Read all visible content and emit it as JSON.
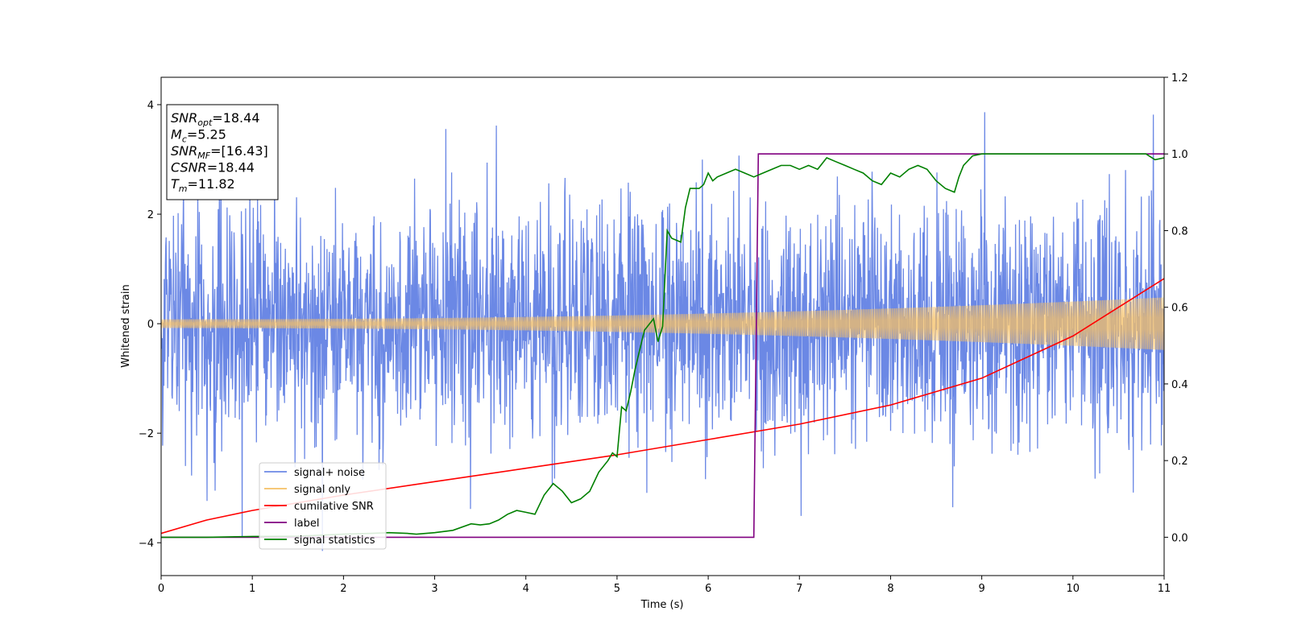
{
  "chart_data": {
    "type": "line",
    "title": "",
    "xlabel": "Time (s)",
    "ylabel": "Whitened strain",
    "y2label": "",
    "xlim": [
      0,
      11
    ],
    "ylim": [
      -4.6,
      4.5
    ],
    "y2lim": [
      -0.1,
      1.2
    ],
    "x_ticks": [
      0,
      1,
      2,
      3,
      4,
      5,
      6,
      7,
      8,
      9,
      10,
      11
    ],
    "y_ticks": [
      -4,
      -2,
      0,
      2,
      4
    ],
    "y2_ticks": [
      0.0,
      0.2,
      0.4,
      0.6,
      0.8,
      1.0,
      1.2
    ],
    "x_tick_labels": [
      "0",
      "1",
      "2",
      "3",
      "4",
      "5",
      "6",
      "7",
      "8",
      "9",
      "10",
      "11"
    ],
    "y_tick_labels": [
      "−4",
      "−2",
      "0",
      "2",
      "4"
    ],
    "y2_tick_labels": [
      "0.0",
      "0.2",
      "0.4",
      "0.6",
      "0.8",
      "1.0",
      "1.2"
    ],
    "grid": false,
    "legend_position": "lower-left",
    "info_box": {
      "position": "top-left",
      "lines": [
        {
          "sym": "SNR",
          "sub": "opt",
          "rest": "=18.44"
        },
        {
          "sym": "M",
          "sub": "c",
          "rest": "=5.25"
        },
        {
          "sym": "SNR",
          "sub": "MF",
          "rest": "=[16.43]"
        },
        {
          "sym": "CSNR",
          "sub": "",
          "rest": "=18.44"
        },
        {
          "sym": "T",
          "sub": "m",
          "rest": "=11.82"
        }
      ]
    },
    "series": [
      {
        "name": "signal+ noise",
        "axis": "left",
        "color": "#6b88e5",
        "kind": "noise-band",
        "typical_amplitude": 1.6,
        "peak_max": 4.13,
        "peak_min": -4.15
      },
      {
        "name": "signal only",
        "axis": "left",
        "color": "#f5c065",
        "kind": "chirp",
        "amplitude_start": 0.08,
        "amplitude_end": 0.48
      },
      {
        "name": "cumilative SNR",
        "axis": "right",
        "color": "#ff0000",
        "x": [
          0,
          0.5,
          1,
          2,
          3,
          4,
          5,
          6,
          7,
          8,
          9,
          10,
          10.5,
          11
        ],
        "y": [
          0.01,
          0.045,
          0.07,
          0.11,
          0.145,
          0.18,
          0.215,
          0.255,
          0.295,
          0.345,
          0.415,
          0.525,
          0.6,
          0.675
        ]
      },
      {
        "name": "label",
        "axis": "right",
        "color": "#800080",
        "x": [
          0,
          6.5,
          6.55,
          11
        ],
        "y": [
          0.0,
          0.0,
          1.0,
          1.0
        ]
      },
      {
        "name": "signal statistics",
        "axis": "right",
        "color": "#008000",
        "x": [
          0,
          0.5,
          1,
          1.5,
          2,
          2.3,
          2.5,
          2.7,
          2.8,
          3,
          3.2,
          3.4,
          3.5,
          3.6,
          3.7,
          3.8,
          3.9,
          4.0,
          4.1,
          4.2,
          4.3,
          4.4,
          4.5,
          4.6,
          4.7,
          4.8,
          4.9,
          4.95,
          5.0,
          5.05,
          5.1,
          5.15,
          5.2,
          5.3,
          5.4,
          5.45,
          5.5,
          5.55,
          5.6,
          5.7,
          5.75,
          5.8,
          5.9,
          5.95,
          6.0,
          6.05,
          6.1,
          6.2,
          6.3,
          6.4,
          6.5,
          6.6,
          6.7,
          6.8,
          6.9,
          7.0,
          7.1,
          7.2,
          7.3,
          7.4,
          7.5,
          7.6,
          7.7,
          7.8,
          7.9,
          8.0,
          8.1,
          8.2,
          8.3,
          8.4,
          8.5,
          8.6,
          8.7,
          8.75,
          8.8,
          8.9,
          9.0,
          9.2,
          9.5,
          9.8,
          10.0,
          10.3,
          10.6,
          10.8,
          10.9,
          11.0
        ],
        "y": [
          0.0,
          0.0,
          0.002,
          0.003,
          0.008,
          0.01,
          0.012,
          0.01,
          0.008,
          0.012,
          0.018,
          0.035,
          0.032,
          0.035,
          0.045,
          0.06,
          0.07,
          0.065,
          0.06,
          0.11,
          0.14,
          0.12,
          0.09,
          0.1,
          0.12,
          0.17,
          0.2,
          0.22,
          0.21,
          0.34,
          0.33,
          0.38,
          0.44,
          0.54,
          0.57,
          0.51,
          0.55,
          0.8,
          0.78,
          0.77,
          0.86,
          0.91,
          0.91,
          0.92,
          0.95,
          0.93,
          0.94,
          0.95,
          0.96,
          0.95,
          0.94,
          0.95,
          0.96,
          0.97,
          0.97,
          0.96,
          0.97,
          0.96,
          0.99,
          0.98,
          0.97,
          0.96,
          0.95,
          0.93,
          0.92,
          0.95,
          0.94,
          0.96,
          0.97,
          0.96,
          0.93,
          0.91,
          0.9,
          0.94,
          0.97,
          0.995,
          1.0,
          1.0,
          1.0,
          1.0,
          1.0,
          1.0,
          1.0,
          1.0,
          0.985,
          0.99
        ]
      }
    ]
  }
}
